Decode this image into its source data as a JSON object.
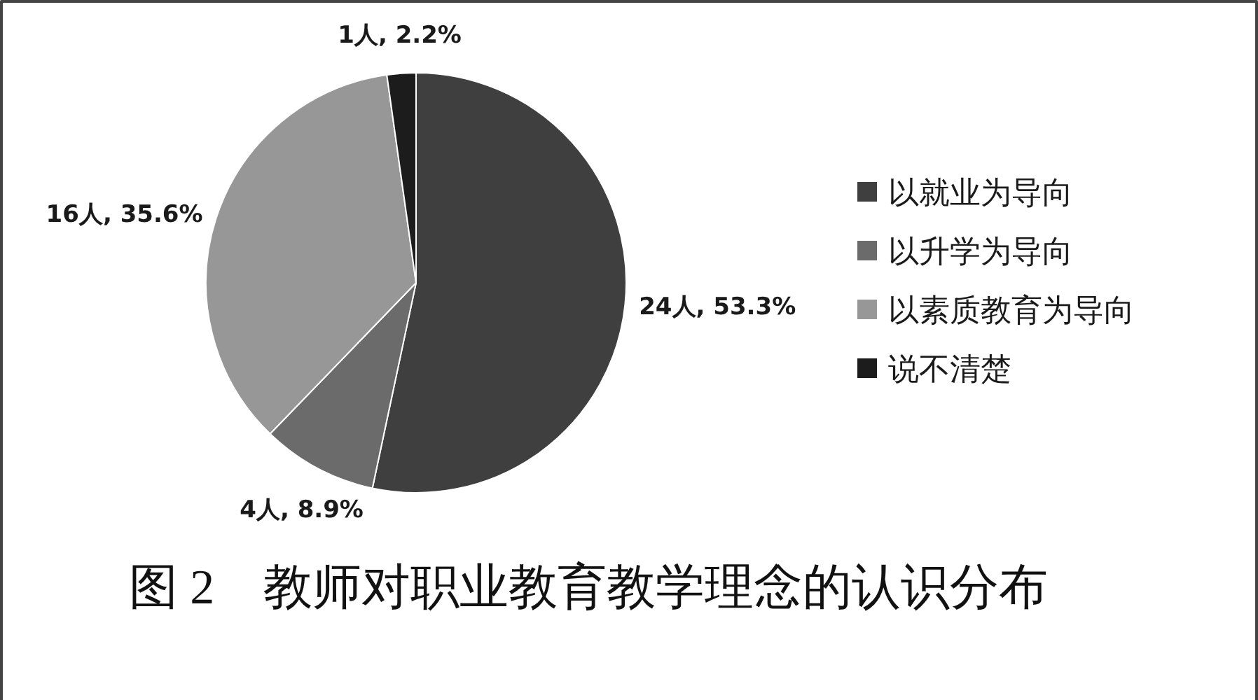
{
  "chart_data": {
    "type": "pie",
    "title": "图 2　教师对职业教育教学理念的认识分布",
    "categories": [
      "以就业为导向",
      "以升学为导向",
      "以素质教育为导向",
      "说不清楚"
    ],
    "values": [
      24,
      4,
      16,
      1
    ],
    "value_labels": [
      "24人, 53.3%",
      "4人, 8.9%",
      "16人, 35.6%",
      "1人, 2.2%"
    ],
    "colors": [
      "#3f3f3f",
      "#6b6b6b",
      "#979797",
      "#1c1c1c"
    ],
    "legend": "right"
  }
}
